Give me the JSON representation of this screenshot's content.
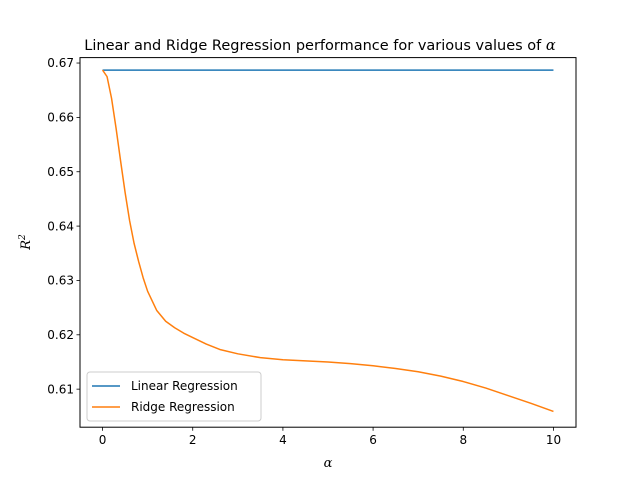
{
  "chart_data": {
    "type": "line",
    "title_prefix": "Linear and Ridge Regression performance for various values of ",
    "title_symbol": "α",
    "xlabel": "α",
    "ylabel_base": "R",
    "ylabel_sup": "2",
    "xlim": [
      -0.5,
      10.5
    ],
    "ylim": [
      0.603,
      0.671
    ],
    "xticks": [
      0,
      2,
      4,
      6,
      8,
      10
    ],
    "xtick_labels": [
      "0",
      "2",
      "4",
      "6",
      "8",
      "10"
    ],
    "yticks": [
      0.61,
      0.62,
      0.63,
      0.64,
      0.65,
      0.66,
      0.67
    ],
    "ytick_labels": [
      "0.61",
      "0.62",
      "0.63",
      "0.64",
      "0.65",
      "0.66",
      "0.67"
    ],
    "grid": false,
    "legend_position": "lower-left",
    "series": [
      {
        "name": "Linear Regression",
        "color": "#1f77b4",
        "x": [
          0,
          10
        ],
        "y": [
          0.6687,
          0.6687
        ]
      },
      {
        "name": "Ridge Regression",
        "color": "#ff7f0e",
        "x": [
          0,
          0.1,
          0.2,
          0.3,
          0.4,
          0.5,
          0.6,
          0.7,
          0.8,
          0.9,
          1.0,
          1.2,
          1.4,
          1.6,
          1.8,
          2.0,
          2.3,
          2.6,
          3.0,
          3.5,
          4.0,
          4.5,
          5.0,
          5.5,
          6.0,
          6.5,
          7.0,
          7.5,
          8.0,
          8.5,
          9.0,
          9.5,
          10.0
        ],
        "y": [
          0.6687,
          0.6675,
          0.6635,
          0.658,
          0.652,
          0.6462,
          0.641,
          0.6368,
          0.6335,
          0.6305,
          0.628,
          0.6245,
          0.6225,
          0.6213,
          0.6203,
          0.6195,
          0.6183,
          0.6173,
          0.6165,
          0.6158,
          0.6154,
          0.6152,
          0.615,
          0.6147,
          0.6143,
          0.6138,
          0.6132,
          0.6124,
          0.6114,
          0.6102,
          0.6088,
          0.6074,
          0.6059
        ]
      }
    ]
  }
}
